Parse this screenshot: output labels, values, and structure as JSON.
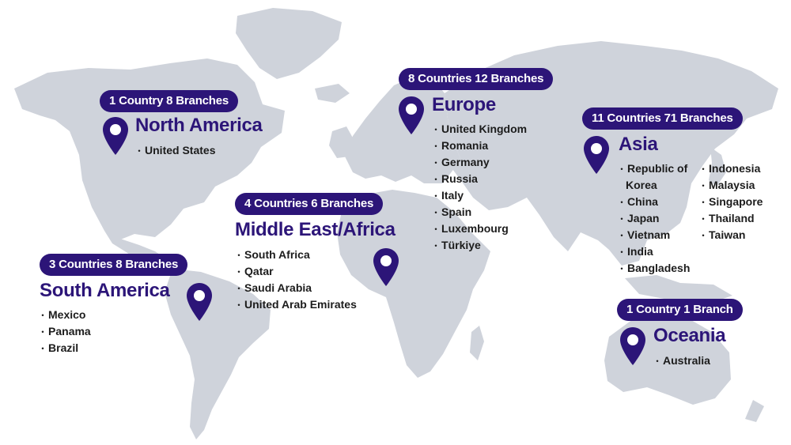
{
  "regions": {
    "north_america": {
      "badge": "1 Country 8 Branches",
      "name": "North America",
      "countries": [
        "United States"
      ]
    },
    "south_america": {
      "badge": "3 Countries 8 Branches",
      "name": "South America",
      "countries": [
        "Mexico",
        "Panama",
        "Brazil"
      ]
    },
    "middle_east_africa": {
      "badge": "4 Countries 6 Branches",
      "name": "Middle East/Africa",
      "countries": [
        "South Africa",
        "Qatar",
        "Saudi Arabia",
        "United Arab Emirates"
      ]
    },
    "europe": {
      "badge": "8 Countries 12 Branches",
      "name": "Europe",
      "countries": [
        "United Kingdom",
        "Romania",
        "Germany",
        "Russia",
        "Italy",
        "Spain",
        "Luxembourg",
        "Türkiye"
      ]
    },
    "asia": {
      "badge": "11 Countries 71 Branches",
      "name": "Asia",
      "countries_col1": [
        "Republic of",
        "Korea",
        "China",
        "Japan",
        "Vietnam",
        "India",
        "Bangladesh"
      ],
      "countries_col2": [
        "Indonesia",
        "Malaysia",
        "Singapore",
        "Thailand",
        "Taiwan"
      ]
    },
    "oceania": {
      "badge": "1 Country 1 Branch",
      "name": "Oceania",
      "countries": [
        "Australia"
      ]
    }
  },
  "colors": {
    "accent": "#2c1578",
    "land": "#cfd3db",
    "text": "#1c1c1c",
    "background": "#ffffff"
  },
  "icons": {
    "marker": "map-pin-icon"
  }
}
